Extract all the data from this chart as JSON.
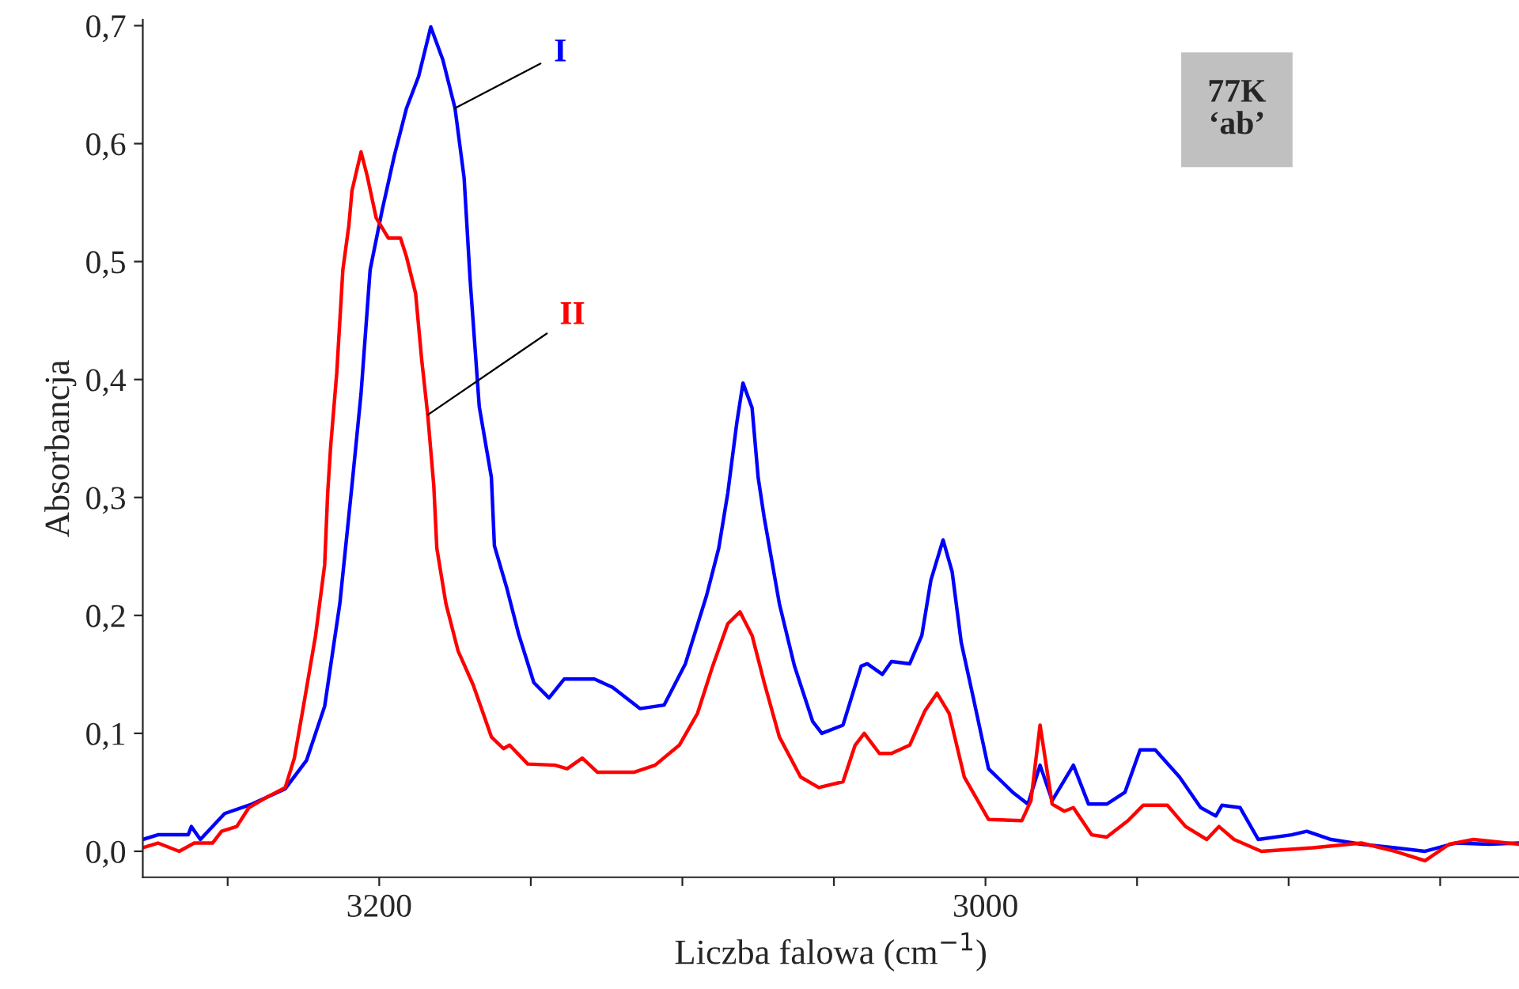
{
  "chart_data": {
    "type": "line",
    "xlabel": "Liczba falowa (cm$^{−1}$)",
    "ylabel": "Absorbancja",
    "annotations": [
      "77K\n‘ab’"
    ],
    "xlim": [
      3278,
      2824
    ],
    "ylim": [
      -0.022,
      0.705
    ],
    "xticks": [
      {
        "value": 3250,
        "label": null
      },
      3200,
      {
        "value": 3150,
        "label": null
      },
      {
        "value": 3100,
        "label": null
      },
      {
        "value": 3050,
        "label": null
      },
      3000,
      {
        "value": 2950,
        "label": null
      },
      {
        "value": 2900,
        "label": null
      },
      {
        "value": 2850,
        "label": null
      }
    ],
    "yticks": [
      {
        "value": 0.0,
        "label": "0,0"
      },
      {
        "value": 0.1,
        "label": "0,1"
      },
      {
        "value": 0.2,
        "label": "0,2"
      },
      {
        "value": 0.3,
        "label": "0,3"
      },
      {
        "value": 0.4,
        "label": "0,4"
      },
      {
        "value": 0.5,
        "label": "0,5"
      },
      {
        "value": 0.6,
        "label": "0,6"
      },
      {
        "value": 0.7,
        "label": "0,7"
      }
    ],
    "grid": false,
    "legend": false,
    "marker": "none",
    "line_style": "solid",
    "series": [
      {
        "name": "I",
        "color": "#0000ff",
        "x": [
          3278,
          3273,
          3263,
          3262,
          3259,
          3251,
          3242,
          3231,
          3224,
          3218,
          3213,
          3209,
          3206,
          3203,
          3199,
          3195,
          3191,
          3187,
          3183,
          3179,
          3175,
          3172,
          3170,
          3167,
          3163,
          3162,
          3158,
          3154,
          3149,
          3144,
          3139,
          3129,
          3123,
          3114,
          3106,
          3099,
          3092,
          3088,
          3085,
          3082,
          3080,
          3077,
          3075,
          3073,
          3068,
          3063,
          3057,
          3054,
          3047,
          3041,
          3039,
          3034,
          3031,
          3025,
          3021,
          3018,
          3014,
          3011,
          3008,
          3004,
          2999,
          2991,
          2986,
          2982,
          2978,
          2971,
          2966,
          2960,
          2954,
          2949,
          2944,
          2936,
          2929,
          2924,
          2922,
          2916,
          2910,
          2899,
          2894,
          2886,
          2876,
          2865,
          2855,
          2845,
          2834,
          2824
        ],
        "values": [
          0.01,
          0.014,
          0.014,
          0.021,
          0.01,
          0.032,
          0.04,
          0.053,
          0.077,
          0.123,
          0.21,
          0.31,
          0.388,
          0.493,
          0.544,
          0.59,
          0.63,
          0.657,
          0.699,
          0.671,
          0.63,
          0.571,
          0.484,
          0.377,
          0.317,
          0.259,
          0.224,
          0.184,
          0.143,
          0.13,
          0.146,
          0.146,
          0.139,
          0.121,
          0.124,
          0.159,
          0.217,
          0.257,
          0.304,
          0.364,
          0.397,
          0.376,
          0.317,
          0.283,
          0.21,
          0.157,
          0.11,
          0.1,
          0.107,
          0.157,
          0.159,
          0.15,
          0.161,
          0.159,
          0.183,
          0.23,
          0.264,
          0.237,
          0.177,
          0.13,
          0.07,
          0.05,
          0.04,
          0.073,
          0.043,
          0.073,
          0.04,
          0.04,
          0.05,
          0.086,
          0.086,
          0.063,
          0.037,
          0.03,
          0.039,
          0.037,
          0.01,
          0.014,
          0.017,
          0.01,
          0.006,
          0.003,
          0.0,
          0.007,
          0.006,
          0.007
        ]
      },
      {
        "name": "II",
        "color": "#ff0000",
        "x": [
          3278,
          3273,
          3266,
          3261,
          3255,
          3252,
          3247,
          3243,
          3237,
          3231,
          3228,
          3225,
          3221,
          3218,
          3217,
          3216,
          3214,
          3212,
          3210,
          3209,
          3206,
          3204,
          3201,
          3197,
          3193,
          3191,
          3188,
          3186,
          3184,
          3182,
          3181,
          3178,
          3174,
          3169,
          3163,
          3159,
          3157,
          3151,
          3142,
          3138,
          3133,
          3128,
          3116,
          3109,
          3101,
          3095,
          3090,
          3085,
          3081,
          3077,
          3073,
          3068,
          3061,
          3055,
          3047,
          3043,
          3040,
          3035,
          3031,
          3025,
          3020,
          3016,
          3012,
          3007,
          2999,
          2988,
          2985,
          2982,
          2978,
          2974,
          2971,
          2965,
          2960,
          2953,
          2948,
          2940,
          2934,
          2927,
          2923,
          2918,
          2909,
          2892,
          2876,
          2865,
          2855,
          2847,
          2839,
          2824
        ],
        "values": [
          0.003,
          0.007,
          0.0,
          0.007,
          0.007,
          0.017,
          0.021,
          0.037,
          0.046,
          0.054,
          0.079,
          0.123,
          0.183,
          0.243,
          0.304,
          0.344,
          0.406,
          0.493,
          0.531,
          0.56,
          0.593,
          0.573,
          0.537,
          0.52,
          0.52,
          0.504,
          0.473,
          0.417,
          0.37,
          0.31,
          0.257,
          0.21,
          0.17,
          0.141,
          0.097,
          0.087,
          0.09,
          0.074,
          0.073,
          0.07,
          0.079,
          0.067,
          0.067,
          0.073,
          0.09,
          0.117,
          0.157,
          0.193,
          0.203,
          0.183,
          0.143,
          0.097,
          0.063,
          0.054,
          0.059,
          0.09,
          0.1,
          0.083,
          0.083,
          0.09,
          0.119,
          0.134,
          0.117,
          0.063,
          0.027,
          0.026,
          0.043,
          0.107,
          0.04,
          0.034,
          0.037,
          0.014,
          0.012,
          0.026,
          0.039,
          0.039,
          0.021,
          0.01,
          0.021,
          0.01,
          0.0,
          0.003,
          0.007,
          0.0,
          -0.008,
          0.006,
          0.01,
          0.006
        ]
      }
    ]
  }
}
